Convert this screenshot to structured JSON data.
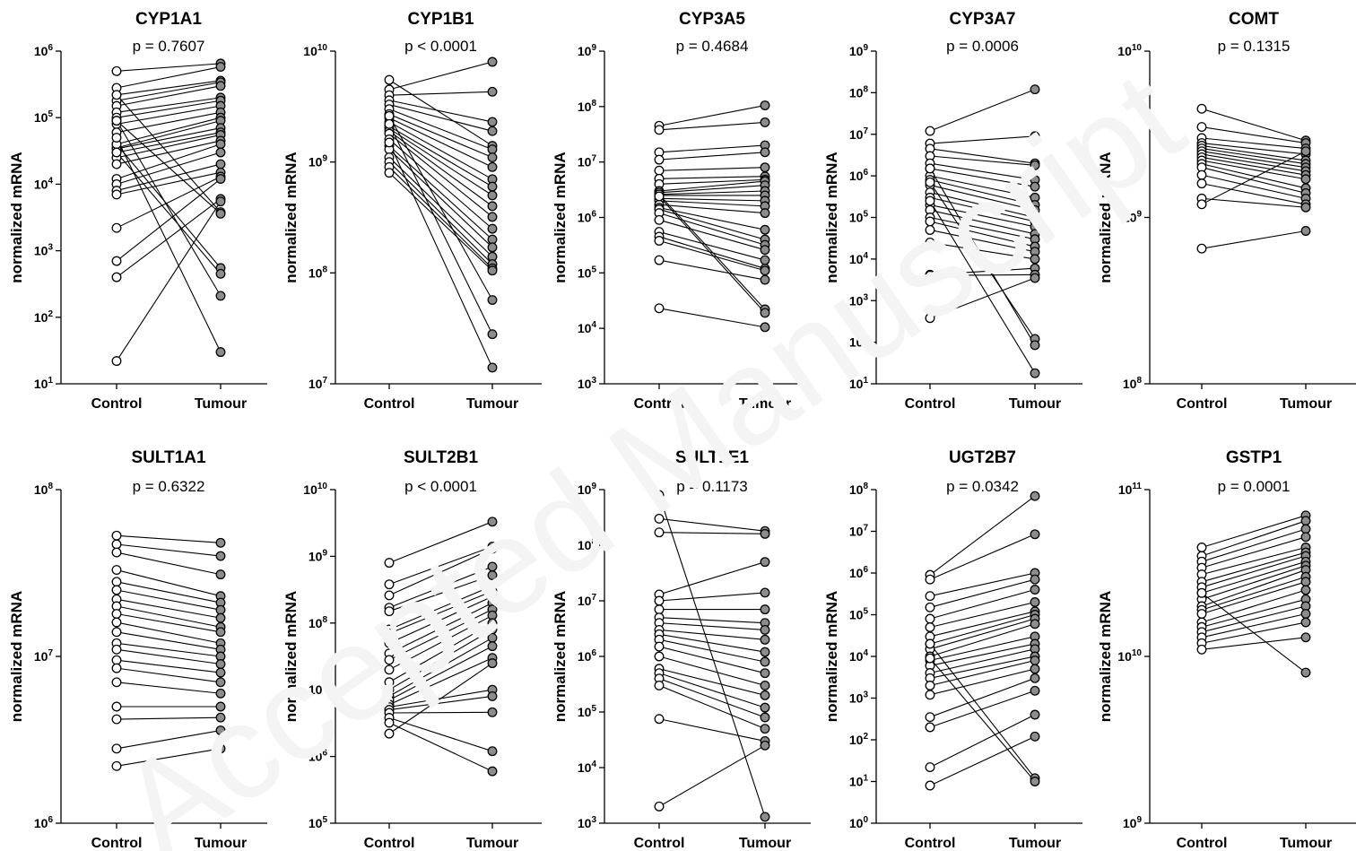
{
  "watermark": "Accepted Manuscript",
  "colors": {
    "control_fill": "#ffffff",
    "tumour_fill": "#8c8c8c",
    "stroke": "#000000"
  },
  "chart_data": [
    {
      "type": "scatter",
      "subtype": "paired-dot",
      "title": "CYP1A1",
      "annotation": "p = 0.7607",
      "ylabel": "normalized mRNA",
      "yscale": "log",
      "ylim_exp": [
        1,
        6
      ],
      "categories": [
        "Control",
        "Tumour"
      ],
      "pairs": [
        [
          500000,
          650000
        ],
        [
          280000,
          580000
        ],
        [
          220000,
          360000
        ],
        [
          180000,
          340000
        ],
        [
          150000,
          300000
        ],
        [
          120000,
          200000
        ],
        [
          100000,
          180000
        ],
        [
          80000,
          150000
        ],
        [
          60000,
          120000
        ],
        [
          40000,
          100000
        ],
        [
          35000,
          90000
        ],
        [
          34000,
          70000
        ],
        [
          30000,
          60000
        ],
        [
          25000,
          55000
        ],
        [
          20000,
          45000
        ],
        [
          12000,
          40000
        ],
        [
          10000,
          30000
        ],
        [
          8000,
          20000
        ],
        [
          7000,
          15000
        ],
        [
          2200,
          13000
        ],
        [
          700,
          12000
        ],
        [
          400,
          6000
        ],
        [
          22,
          5500
        ],
        [
          220000,
          3800
        ],
        [
          90000,
          3600
        ],
        [
          40000,
          550
        ],
        [
          30000,
          450
        ],
        [
          90000,
          210
        ],
        [
          50000,
          30
        ]
      ]
    },
    {
      "type": "scatter",
      "subtype": "paired-dot",
      "title": "CYP1B1",
      "annotation": "p < 0.0001",
      "ylabel": "normalized mRNA",
      "yscale": "log",
      "ylim_exp": [
        7,
        10
      ],
      "categories": [
        "Control",
        "Tumour"
      ],
      "pairs": [
        [
          5500000000,
          1400000000
        ],
        [
          4500000000,
          8000000000
        ],
        [
          4000000000,
          4300000000
        ],
        [
          3600000000,
          2300000000
        ],
        [
          3300000000,
          1900000000
        ],
        [
          3000000000,
          1300000000
        ],
        [
          2700000000,
          1100000000
        ],
        [
          2500000000,
          900000000
        ],
        [
          2300000000,
          700000000
        ],
        [
          2100000000,
          600000000
        ],
        [
          2000000000,
          500000000
        ],
        [
          1900000000,
          400000000
        ],
        [
          1800000000,
          320000000
        ],
        [
          1600000000,
          250000000
        ],
        [
          1400000000,
          200000000
        ],
        [
          1300000000,
          170000000
        ],
        [
          1100000000,
          140000000
        ],
        [
          1000000000,
          120000000
        ],
        [
          900000000,
          110000000
        ],
        [
          800000000,
          105000000
        ],
        [
          2600000000,
          57000000
        ],
        [
          2200000000,
          28000000
        ],
        [
          1500000000,
          14000000
        ]
      ]
    },
    {
      "type": "scatter",
      "subtype": "paired-dot",
      "title": "CYP3A5",
      "annotation": "p = 0.4684",
      "ylabel": "normalized mRNA",
      "yscale": "log",
      "ylim_exp": [
        3,
        9
      ],
      "categories": [
        "Control",
        "Tumour"
      ],
      "pairs": [
        [
          45000000,
          105000000
        ],
        [
          38000000,
          52000000
        ],
        [
          15000000,
          20000000
        ],
        [
          11000000,
          15000000
        ],
        [
          7000000,
          8000000
        ],
        [
          5000000,
          5500000
        ],
        [
          4000000,
          4800000
        ],
        [
          3000000,
          4500000
        ],
        [
          2800000,
          3800000
        ],
        [
          2600000,
          3000000
        ],
        [
          2500000,
          2500000
        ],
        [
          2200000,
          2000000
        ],
        [
          2000000,
          1600000
        ],
        [
          1700000,
          1200000
        ],
        [
          1500000,
          600000
        ],
        [
          1400000,
          400000
        ],
        [
          1200000,
          320000
        ],
        [
          900000,
          260000
        ],
        [
          550000,
          170000
        ],
        [
          450000,
          120000
        ],
        [
          380000,
          110000
        ],
        [
          170000,
          75000
        ],
        [
          23000,
          10500
        ],
        [
          2600000,
          22000
        ],
        [
          2400000,
          19000
        ]
      ]
    },
    {
      "type": "scatter",
      "subtype": "paired-dot",
      "title": "CYP3A7",
      "annotation": "p = 0.0006",
      "ylabel": "normalized mRNA",
      "yscale": "log",
      "ylim_exp": [
        1,
        9
      ],
      "categories": [
        "Control",
        "Tumour"
      ],
      "pairs": [
        [
          12000000,
          120000000
        ],
        [
          6000000,
          9000000
        ],
        [
          4500000,
          2000000
        ],
        [
          3000000,
          1800000
        ],
        [
          2000000,
          800000
        ],
        [
          1500000,
          550000
        ],
        [
          1000000,
          300000
        ],
        [
          800000,
          200000
        ],
        [
          600000,
          150000
        ],
        [
          400000,
          100000
        ],
        [
          300000,
          80000
        ],
        [
          200000,
          60000
        ],
        [
          150000,
          40000
        ],
        [
          100000,
          30000
        ],
        [
          80000,
          20000
        ],
        [
          50000,
          15000
        ],
        [
          25000,
          10000
        ],
        [
          4200,
          6000
        ],
        [
          4000,
          4200
        ],
        [
          380,
          3500
        ],
        [
          700000,
          120
        ],
        [
          1500000,
          85
        ],
        [
          250000,
          18
        ]
      ]
    },
    {
      "type": "scatter",
      "subtype": "paired-dot",
      "title": "COMT",
      "annotation": "p = 0.1315",
      "ylabel": "normalized mRNA",
      "yscale": "log",
      "ylim_exp": [
        8,
        10
      ],
      "categories": [
        "Control",
        "Tumour"
      ],
      "pairs": [
        [
          4500000000,
          2900000000
        ],
        [
          3500000000,
          2800000000
        ],
        [
          3000000000,
          2600000000
        ],
        [
          2800000000,
          2400000000
        ],
        [
          2700000000,
          2200000000
        ],
        [
          2600000000,
          2100000000
        ],
        [
          2500000000,
          2000000000
        ],
        [
          2400000000,
          1900000000
        ],
        [
          2300000000,
          1800000000
        ],
        [
          2200000000,
          1700000000
        ],
        [
          2100000000,
          1500000000
        ],
        [
          2000000000,
          1400000000
        ],
        [
          1800000000,
          1300000000
        ],
        [
          1600000000,
          1200000000
        ],
        [
          1300000000,
          1150000000
        ],
        [
          1200000000,
          2500000000
        ],
        [
          650000000,
          830000000
        ]
      ]
    },
    {
      "type": "scatter",
      "subtype": "paired-dot",
      "title": "SULT1A1",
      "annotation": "p = 0.6322",
      "ylabel": "normalized mRNA",
      "yscale": "log",
      "ylim_exp": [
        6,
        8
      ],
      "categories": [
        "Control",
        "Tumour"
      ],
      "pairs": [
        [
          53000000,
          48000000
        ],
        [
          47000000,
          40000000
        ],
        [
          42000000,
          31000000
        ],
        [
          33000000,
          23000000
        ],
        [
          28000000,
          21000000
        ],
        [
          25000000,
          19000000
        ],
        [
          22000000,
          17000000
        ],
        [
          20000000,
          15000000
        ],
        [
          18000000,
          14000000
        ],
        [
          16000000,
          12000000
        ],
        [
          14000000,
          11000000
        ],
        [
          12000000,
          10000000
        ],
        [
          11000000,
          9000000
        ],
        [
          9500000,
          8000000
        ],
        [
          8500000,
          7000000
        ],
        [
          7000000,
          6000000
        ],
        [
          5000000,
          5000000
        ],
        [
          4200000,
          4300000
        ],
        [
          2800000,
          3600000
        ],
        [
          2200000,
          2800000
        ]
      ]
    },
    {
      "type": "scatter",
      "subtype": "paired-dot",
      "title": "SULT2B1",
      "annotation": "p < 0.0001",
      "ylabel": "normalized mRNA",
      "yscale": "log",
      "ylim_exp": [
        5,
        10
      ],
      "categories": [
        "Control",
        "Tumour"
      ],
      "pairs": [
        [
          800000000,
          3300000000
        ],
        [
          380000000,
          1400000000
        ],
        [
          260000000,
          1300000000
        ],
        [
          170000000,
          700000000
        ],
        [
          150000000,
          520000000
        ],
        [
          80000000,
          360000000
        ],
        [
          70000000,
          300000000
        ],
        [
          50000000,
          250000000
        ],
        [
          35000000,
          200000000
        ],
        [
          28000000,
          160000000
        ],
        [
          20000000,
          130000000
        ],
        [
          13000000,
          100000000
        ],
        [
          10000000,
          80000000
        ],
        [
          8000000,
          60000000
        ],
        [
          7000000,
          45000000
        ],
        [
          6000000,
          30000000
        ],
        [
          5500000,
          10000000
        ],
        [
          5000000,
          8000000
        ],
        [
          4500000,
          4600000
        ],
        [
          3800000,
          1200000
        ],
        [
          3200000,
          600000
        ],
        [
          2200000,
          25000000
        ]
      ]
    },
    {
      "type": "scatter",
      "subtype": "paired-dot",
      "title": "SULT1E1",
      "annotation": "p = 0.1173",
      "ylabel": "normalized mRNA",
      "yscale": "log",
      "ylim_exp": [
        3,
        9
      ],
      "categories": [
        "Control",
        "Tumour"
      ],
      "pairs": [
        [
          800000000,
          1300
        ],
        [
          300000000,
          180000000
        ],
        [
          170000000,
          160000000
        ],
        [
          13000000,
          50000000
        ],
        [
          10000000,
          14000000
        ],
        [
          7000000,
          7000000
        ],
        [
          5000000,
          4000000
        ],
        [
          4000000,
          3000000
        ],
        [
          3000000,
          2000000
        ],
        [
          2500000,
          1200000
        ],
        [
          2000000,
          800000
        ],
        [
          1500000,
          500000
        ],
        [
          1000000,
          300000
        ],
        [
          600000,
          200000
        ],
        [
          500000,
          120000
        ],
        [
          400000,
          80000
        ],
        [
          300000,
          50000
        ],
        [
          75000,
          30000
        ],
        [
          2000,
          25000
        ]
      ]
    },
    {
      "type": "scatter",
      "subtype": "paired-dot",
      "title": "UGT2B7",
      "annotation": "p = 0.0342",
      "ylabel": "normalized mRNA",
      "yscale": "log",
      "ylim_exp": [
        0,
        8
      ],
      "categories": [
        "Control",
        "Tumour"
      ],
      "pairs": [
        [
          900000,
          70000000
        ],
        [
          700000,
          8500000
        ],
        [
          280000,
          1000000
        ],
        [
          150000,
          700000
        ],
        [
          80000,
          400000
        ],
        [
          50000,
          200000
        ],
        [
          30000,
          120000
        ],
        [
          20000,
          100000
        ],
        [
          15000,
          80000
        ],
        [
          10000,
          60000
        ],
        [
          8000,
          30000
        ],
        [
          6000,
          20000
        ],
        [
          4000,
          15000
        ],
        [
          3000,
          10000
        ],
        [
          2000,
          8000
        ],
        [
          1200,
          5000
        ],
        [
          350,
          3000
        ],
        [
          200,
          1500
        ],
        [
          22,
          400
        ],
        [
          8,
          120
        ],
        [
          20000,
          12
        ],
        [
          9000,
          10
        ]
      ]
    },
    {
      "type": "scatter",
      "subtype": "paired-dot",
      "title": "GSTP1",
      "annotation": "p = 0.0001",
      "ylabel": "normalized mRNA",
      "yscale": "log",
      "ylim_exp": [
        9,
        11
      ],
      "categories": [
        "Control",
        "Tumour"
      ],
      "pairs": [
        [
          45000000000,
          70000000000
        ],
        [
          40000000000,
          65000000000
        ],
        [
          37000000000,
          58000000000
        ],
        [
          34000000000,
          52000000000
        ],
        [
          31000000000,
          45000000000
        ],
        [
          28000000000,
          42000000000
        ],
        [
          26000000000,
          40000000000
        ],
        [
          24000000000,
          37000000000
        ],
        [
          22000000000,
          35000000000
        ],
        [
          20000000000,
          33000000000
        ],
        [
          19000000000,
          30000000000
        ],
        [
          18000000000,
          28000000000
        ],
        [
          16000000000,
          25000000000
        ],
        [
          15000000000,
          22000000000
        ],
        [
          14000000000,
          20000000000
        ],
        [
          13000000000,
          18000000000
        ],
        [
          12000000000,
          16000000000
        ],
        [
          11000000000,
          13000000000
        ],
        [
          24000000000,
          8000000000
        ]
      ]
    }
  ]
}
